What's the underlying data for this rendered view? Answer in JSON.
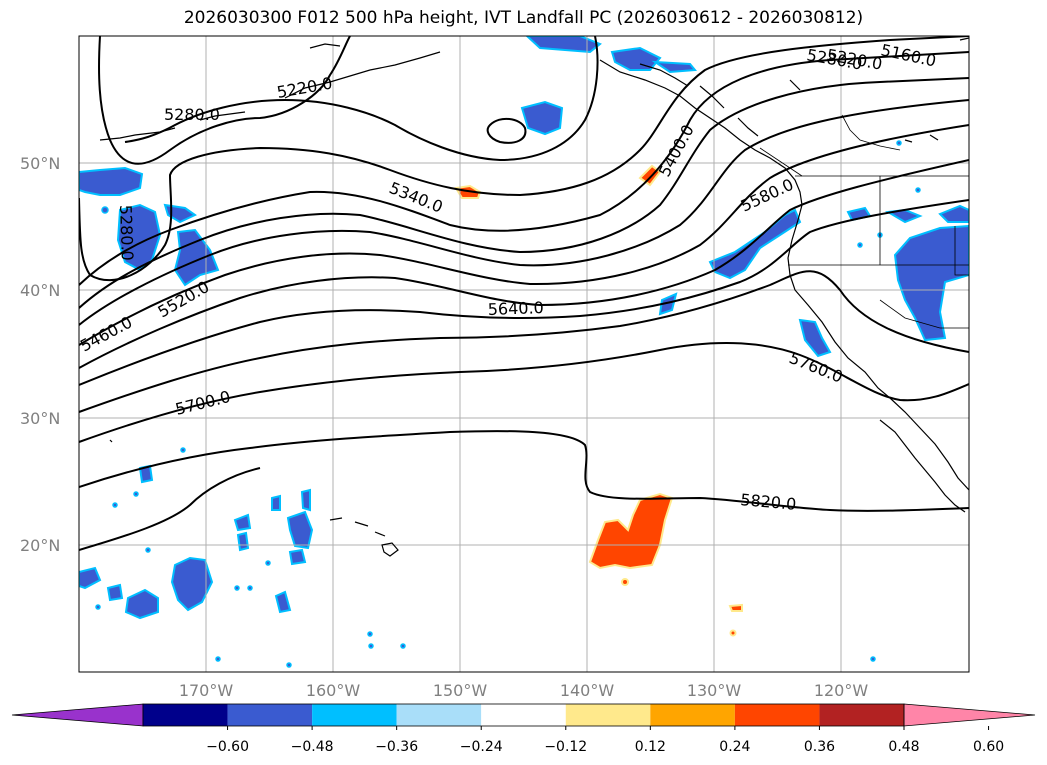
{
  "title": "2026030300 F012 500 hPa height, IVT Landfall PC (2026030612 - 2026030812)",
  "lat_labels": [
    "50°N",
    "40°N",
    "30°N",
    "20°N"
  ],
  "lon_labels": [
    "170°W",
    "160°W",
    "150°W",
    "140°W",
    "130°W",
    "120°W"
  ],
  "contour_labels": [
    "5160.0",
    "5220.0",
    "5220.0",
    "5280.0",
    "5280.0",
    "5280.0",
    "5340.0",
    "5400.0",
    "5460.0",
    "5520.0",
    "5580.0",
    "5640.0",
    "5700.0",
    "5760.0",
    "5820.0"
  ],
  "colorbar": {
    "ticks": [
      "−0.60",
      "−0.48",
      "−0.36",
      "−0.24",
      "−0.12",
      "0.12",
      "0.24",
      "0.36",
      "0.48",
      "0.60"
    ],
    "colors": [
      "#9932cc",
      "#00008b",
      "#3a5bd0",
      "#00bfff",
      "#a9def9",
      "#ffffff",
      "#ffe98c",
      "#ffa500",
      "#ff4500",
      "#b22222",
      "#ff85a8"
    ]
  },
  "colors": {
    "blue_fill": "#3a5bd0",
    "cyan_edge": "#00bfff",
    "orange_fill": "#ff4500",
    "yellow_edge": "#ffe98c",
    "grid": "#b0b0b0"
  }
}
